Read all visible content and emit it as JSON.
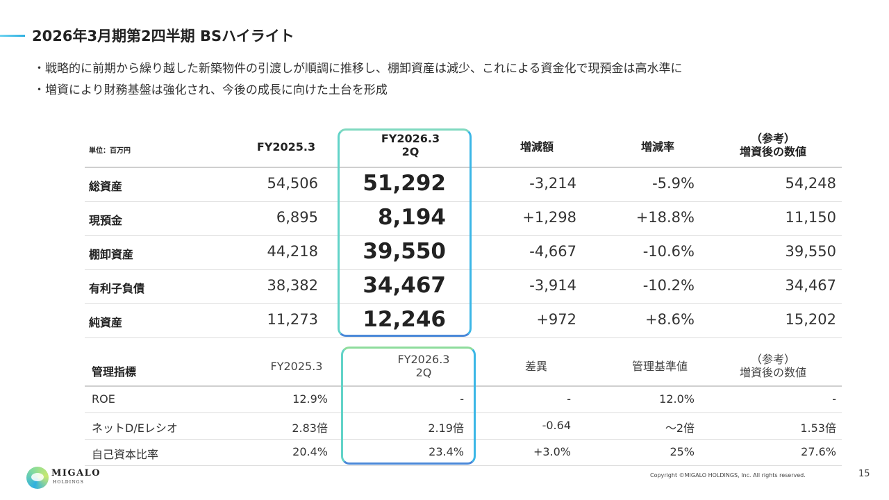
{
  "slide": {
    "title": "2026年3月期第2四半期 BSハイライト",
    "bullets": [
      "・戦略的に前期から繰り越した新築物件の引渡しが順調に推移し、棚卸資産は減少、これによる資金化で現預金は高水準に",
      "・増資により財務基盤は強化され、今後の成長に向けた土台を形成"
    ]
  },
  "bs_table": {
    "unit": "単位：百万円",
    "headers": {
      "prev": "FY2025.3",
      "cur_line1": "FY2026.3",
      "cur_line2": "2Q",
      "change": "増減額",
      "rate": "増減率",
      "ref_line1": "（参考）",
      "ref_line2": "増資後の数値"
    },
    "rows": [
      {
        "label": "総資産",
        "prev": "54,506",
        "cur": "51,292",
        "change": "-3,214",
        "rate": "-5.9%",
        "ref": "54,248"
      },
      {
        "label": "現預金",
        "prev": "6,895",
        "cur": "8,194",
        "change": "+1,298",
        "rate": "+18.8%",
        "ref": "11,150"
      },
      {
        "label": "棚卸資産",
        "prev": "44,218",
        "cur": "39,550",
        "change": "-4,667",
        "rate": "-10.6%",
        "ref": "39,550"
      },
      {
        "label": "有利子負債",
        "prev": "38,382",
        "cur": "34,467",
        "change": "-3,914",
        "rate": "-10.2%",
        "ref": "34,467"
      },
      {
        "label": "純資産",
        "prev": "11,273",
        "cur": "12,246",
        "change": "+972",
        "rate": "+8.6%",
        "ref": "15,202"
      }
    ]
  },
  "kpi_table": {
    "headers": {
      "label": "管理指標",
      "prev": "FY2025.3",
      "cur_line1": "FY2026.3",
      "cur_line2": "2Q",
      "diff": "差異",
      "standard": "管理基準値",
      "ref_line1": "（参考）",
      "ref_line2": "増資後の数値"
    },
    "rows": [
      {
        "label": "ROE",
        "prev": "12.9%",
        "cur": "-",
        "diff": "-",
        "standard": "12.0%",
        "ref": "-"
      },
      {
        "label": "ネットD/Eレシオ",
        "prev": "2.83倍",
        "cur": "2.19倍",
        "diff": "-0.64",
        "standard": "～2倍",
        "ref": "1.53倍"
      },
      {
        "label": "自己資本比率",
        "prev": "20.4%",
        "cur": "23.4%",
        "diff": "+3.0%",
        "standard": "25%",
        "ref": "27.6%"
      }
    ]
  },
  "footer": {
    "logo_name": "MIGALO",
    "logo_sub": "HOLDINGS",
    "copyright": "Copyright ©MIGALO HOLDINGS, Inc. All rights reserved.",
    "page_number": "15"
  },
  "colors": {
    "highlight_frame": "#58c8e0",
    "accent_line": "#2fb0e0"
  }
}
